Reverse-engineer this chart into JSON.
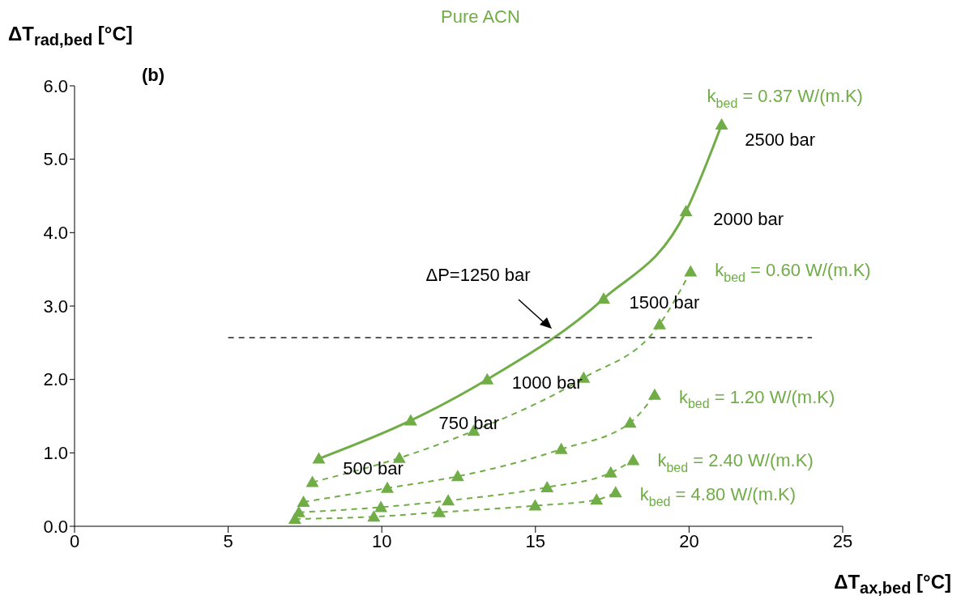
{
  "chart_data": {
    "type": "line",
    "title": "Pure ACN",
    "xlabel": "ΔT$_{ax,bed}$ [°C]",
    "ylabel": "ΔT$_{rad,bed}$ [°C]",
    "xlim": [
      0,
      25
    ],
    "xticks": [
      0,
      5,
      10,
      15,
      20,
      25
    ],
    "ylim": [
      0,
      6
    ],
    "yticks": [
      {
        "value": 0,
        "label": "0.0"
      },
      {
        "value": 1,
        "label": "1.0"
      },
      {
        "value": 2,
        "label": "2.0"
      },
      {
        "value": 3,
        "label": "3.0"
      },
      {
        "value": 4,
        "label": "4.0"
      },
      {
        "value": 5,
        "label": "5.0"
      },
      {
        "value": 6,
        "label": "6.0"
      }
    ],
    "marker": "triangle",
    "series": [
      {
        "name": "k$_{bed}$ = 0.37 W/(m.K)",
        "color": "#70ad47",
        "line_style": "solid",
        "x": [
          7.95,
          10.94,
          13.43,
          17.22,
          19.9,
          21.06
        ],
        "values": [
          0.92,
          1.44,
          2.0,
          3.1,
          4.29,
          5.47
        ]
      },
      {
        "name": "k$_{bed}$ = 0.60 W/(m.K)",
        "color": "#70ad47",
        "line_style": "dashed",
        "x": [
          7.74,
          10.57,
          12.99,
          16.57,
          19.04,
          20.05
        ],
        "values": [
          0.6,
          0.93,
          1.3,
          2.02,
          2.75,
          3.47
        ]
      },
      {
        "name": "k$_{bed}$ = 1.20 W/(m.K)",
        "color": "#70ad47",
        "line_style": "dashed",
        "x": [
          7.45,
          10.18,
          12.47,
          15.84,
          18.08,
          18.88
        ],
        "values": [
          0.33,
          0.52,
          0.68,
          1.05,
          1.41,
          1.79
        ]
      },
      {
        "name": "k$_{bed}$ = 2.40 W/(m.K)",
        "color": "#70ad47",
        "line_style": "dashed",
        "x": [
          7.3,
          9.97,
          12.16,
          15.38,
          17.45,
          18.18
        ],
        "values": [
          0.19,
          0.26,
          0.35,
          0.53,
          0.73,
          0.9
        ]
      },
      {
        "name": "k$_{bed}$ = 4.80 W/(m.K)",
        "color": "#70ad47",
        "line_style": "dashed",
        "x": [
          7.17,
          9.74,
          11.87,
          14.99,
          16.99,
          17.61
        ],
        "values": [
          0.1,
          0.13,
          0.19,
          0.28,
          0.36,
          0.46
        ]
      },
      {
        "color": "#595959",
        "line_style": "dashed",
        "marker": "none",
        "x": [
          5,
          24
        ],
        "values": [
          2.57,
          2.57
        ]
      }
    ],
    "annotations": [
      "(b)",
      "500 bar",
      "750 bar",
      "1000 bar",
      "1500 bar",
      "2000 bar",
      "2500 bar",
      "ΔP=1250 bar"
    ]
  }
}
